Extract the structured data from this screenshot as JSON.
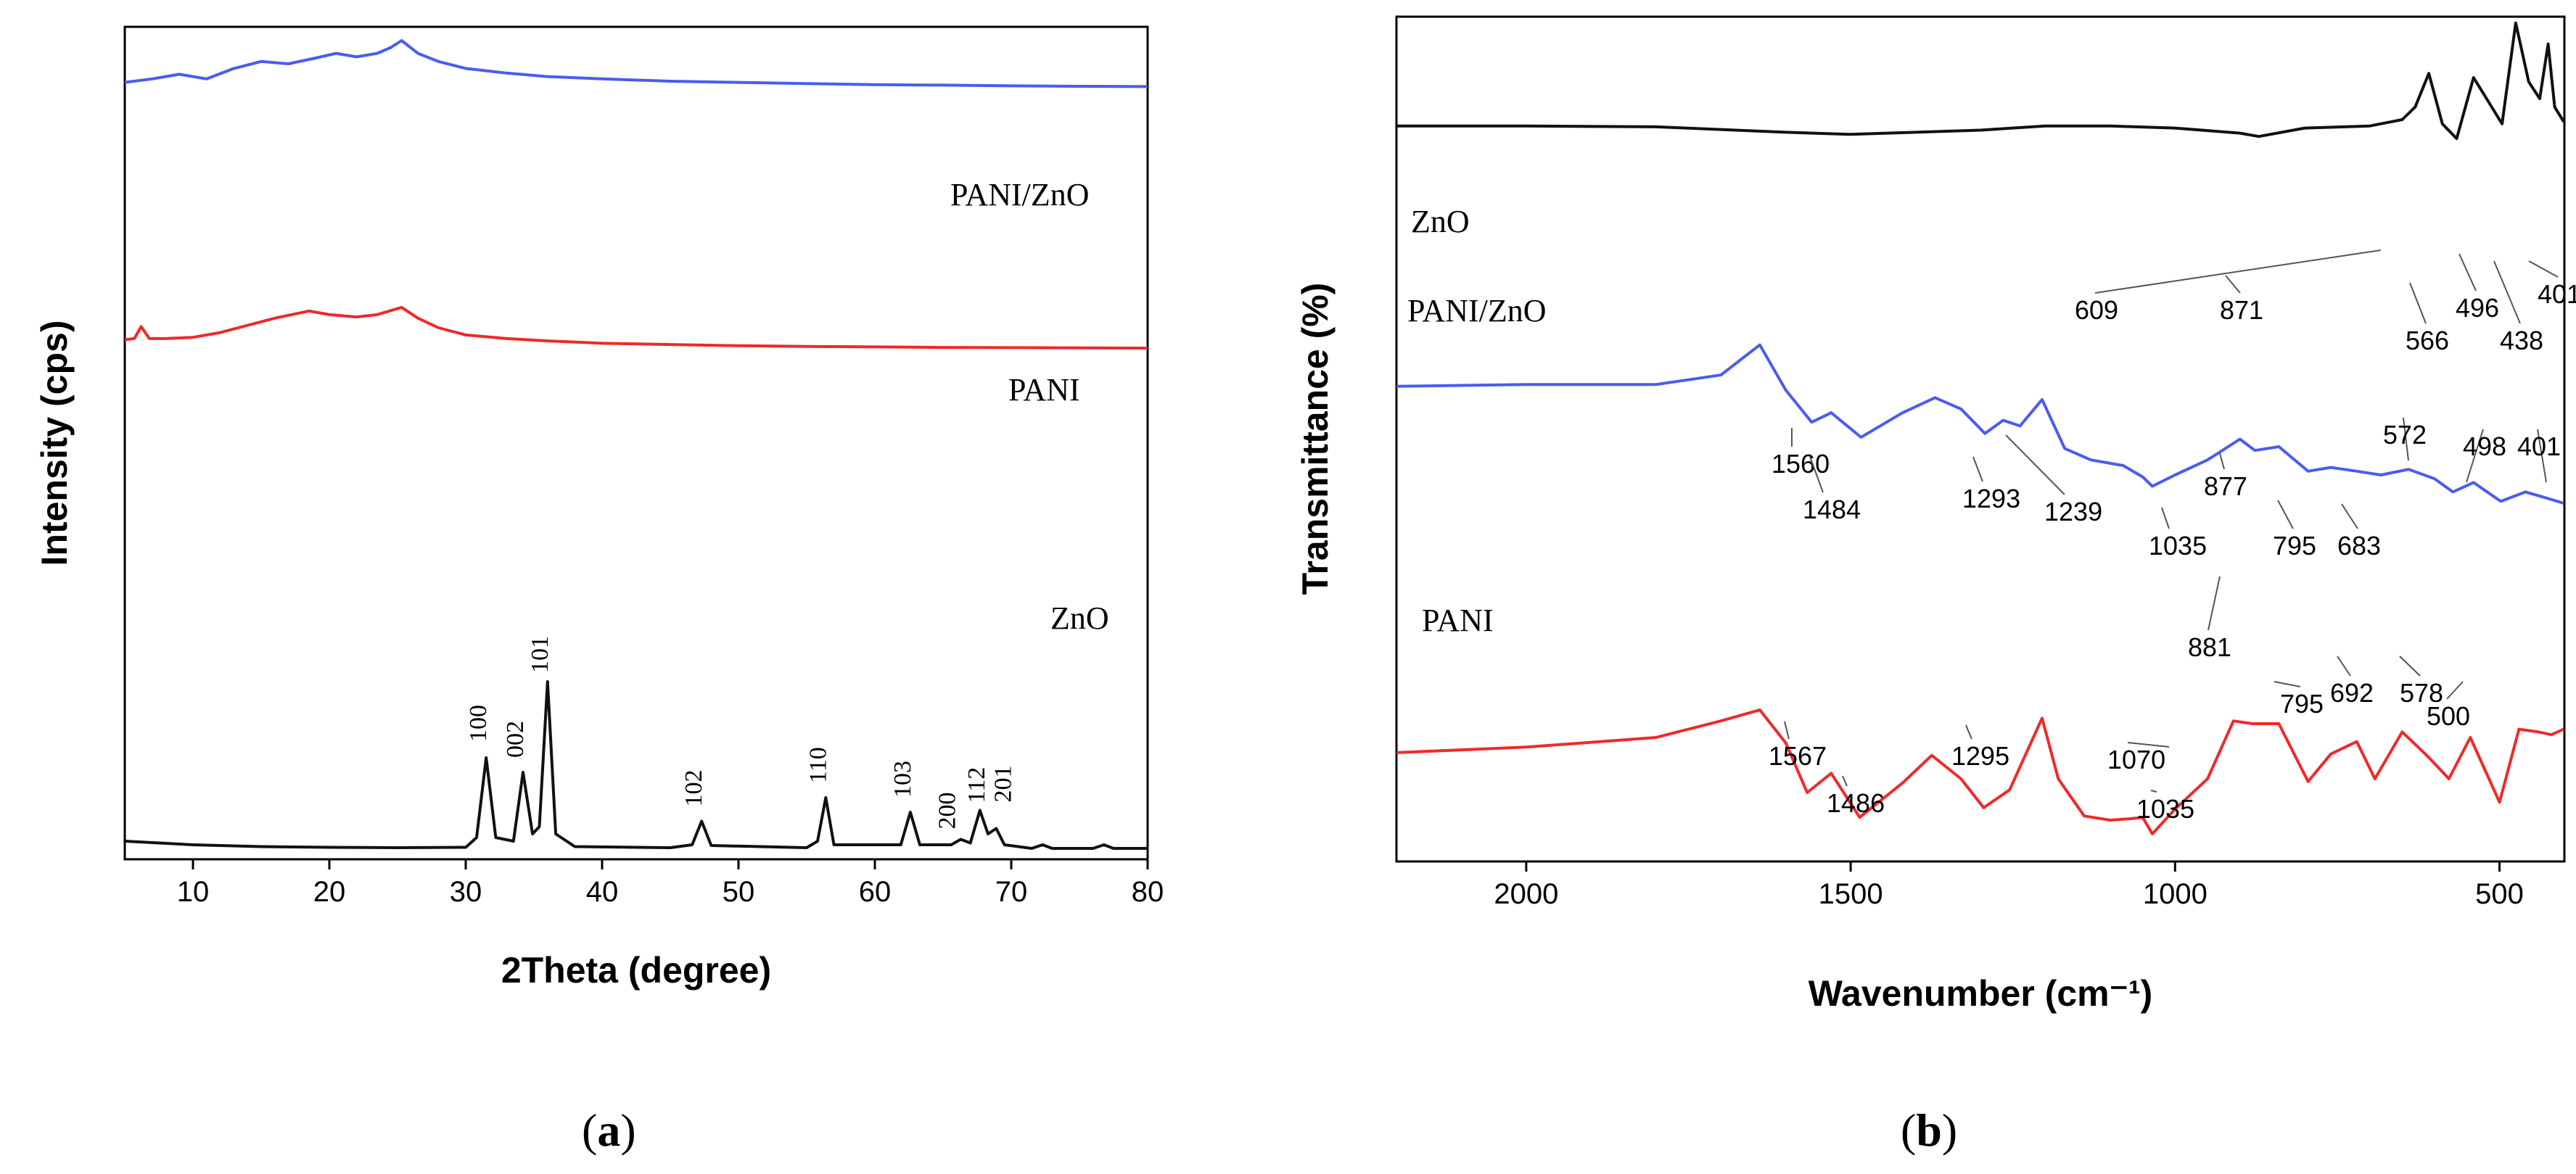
{
  "chart_data": [
    {
      "type": "line",
      "panel_label": "a",
      "xlabel": "2Theta (degree)",
      "ylabel": "Intensity (cps)",
      "xlim": [
        5,
        80
      ],
      "xticks": [
        10,
        20,
        30,
        40,
        50,
        60,
        70,
        80
      ],
      "ylim": [
        0,
        100
      ],
      "series": [
        {
          "name": "PANI/ZnO",
          "color": "#4a5cf0",
          "x": [
            5,
            7,
            9,
            11,
            13,
            15,
            17,
            19,
            20.5,
            22,
            23.5,
            24.5,
            25.3,
            26.5,
            28,
            30,
            33,
            36,
            40,
            45,
            50,
            55,
            60,
            65,
            70,
            75,
            80
          ],
          "y": [
            77,
            78.5,
            80.5,
            78.5,
            83,
            86,
            85,
            87.5,
            89.5,
            88,
            89.5,
            92,
            95,
            89.5,
            86,
            83,
            81,
            79.5,
            78.5,
            77.5,
            77,
            76.5,
            76,
            75.8,
            75.5,
            75.3,
            75.2
          ]
        },
        {
          "name": "PANI",
          "color": "#ee2a2a",
          "x": [
            5,
            5.7,
            6.2,
            6.8,
            8,
            10,
            12,
            14,
            16,
            18.5,
            20,
            22,
            23.5,
            25.3,
            26.5,
            28,
            30,
            33,
            36,
            40,
            45,
            50,
            55,
            60,
            65,
            70,
            75,
            80
          ],
          "y": [
            55,
            55.5,
            60.5,
            55.5,
            55.5,
            56,
            58,
            61,
            64,
            67,
            65.5,
            64.5,
            65.5,
            68.5,
            64,
            60,
            57,
            55.5,
            54.5,
            53.5,
            53,
            52.5,
            52.2,
            52,
            51.8,
            51.7,
            51.6,
            51.5
          ]
        },
        {
          "name": "ZnO",
          "color": "#111111",
          "x": [
            5,
            10,
            15,
            20,
            25,
            30,
            30.8,
            31.5,
            32.2,
            33.5,
            34.2,
            34.9,
            35.4,
            36.0,
            36.6,
            38,
            45,
            46.6,
            47.3,
            48.0,
            55,
            55.8,
            56.4,
            57.0,
            61.9,
            62.6,
            63.3,
            65.6,
            66.3,
            67.0,
            67.7,
            68.3,
            68.9,
            69.5,
            71.5,
            72.3,
            73,
            76,
            76.8,
            77.5,
            80
          ],
          "y": [
            4,
            3,
            2.5,
            2.3,
            2.2,
            2.3,
            5,
            27,
            5,
            4,
            23,
            6,
            8,
            48,
            6,
            2.5,
            2.2,
            3,
            9.5,
            2.8,
            2.2,
            4,
            16,
            3,
            3,
            12,
            3,
            3,
            4.5,
            3.5,
            12.5,
            6,
            7.5,
            3,
            2,
            3,
            2,
            2,
            3,
            2,
            2
          ]
        }
      ],
      "peak_labels": [
        {
          "text": "100",
          "x": 31.5
        },
        {
          "text": "002",
          "x": 34.2
        },
        {
          "text": "101",
          "x": 36.0
        },
        {
          "text": "102",
          "x": 47.3
        },
        {
          "text": "110",
          "x": 56.4
        },
        {
          "text": "103",
          "x": 62.6
        },
        {
          "text": "200",
          "x": 66.3
        },
        {
          "text": "112",
          "x": 67.7
        },
        {
          "text": "201",
          "x": 68.9
        }
      ]
    },
    {
      "type": "line",
      "panel_label": "b",
      "xlabel": "Wavenumber (cm⁻¹)",
      "ylabel": "Transmittance (%)",
      "xlim": [
        2200,
        400
      ],
      "x_reversed": true,
      "xticks": [
        2000,
        1500,
        1000,
        500
      ],
      "ylim": [
        0,
        100
      ],
      "series": [
        {
          "name": "ZnO",
          "color": "#111111",
          "x": [
            2200,
            2000,
            1800,
            1600,
            1500,
            1300,
            1200,
            1100,
            1000,
            900,
            871,
            800,
            700,
            650,
            630,
            609,
            588,
            566,
            540,
            520,
            496,
            475,
            455,
            438,
            425,
            415,
            401
          ],
          "y": [
            73.5,
            73.5,
            73.3,
            72,
            71.5,
            72.5,
            73.5,
            73.5,
            73,
            71.8,
            71,
            73,
            73.5,
            75,
            78,
            86,
            74,
            70.5,
            85,
            80,
            74,
            98,
            84,
            80,
            93,
            78,
            74.5
          ]
        },
        {
          "name": "PANI/ZnO",
          "color": "#4a5cf0",
          "x": [
            2200,
            2000,
            1800,
            1700,
            1640,
            1600,
            1560,
            1530,
            1484,
            1420,
            1370,
            1330,
            1293,
            1265,
            1239,
            1205,
            1170,
            1130,
            1080,
            1050,
            1035,
            1000,
            950,
            900,
            877,
            840,
            795,
            760,
            720,
            683,
            640,
            600,
            572,
            540,
            498,
            460,
            430,
            401
          ],
          "y": [
            61,
            61.5,
            61.5,
            64,
            72,
            60,
            51.5,
            54,
            47.5,
            54,
            58,
            55,
            48.5,
            52,
            50.5,
            57.5,
            44.5,
            41.5,
            40,
            37,
            34.5,
            37.5,
            41.5,
            47,
            44,
            45,
            38.5,
            39.5,
            38.5,
            37.5,
            39,
            36.5,
            33,
            35.5,
            30.5,
            33,
            31.5,
            30
          ]
        },
        {
          "name": "PANI",
          "color": "#ee2a2a",
          "x": [
            2200,
            2000,
            1800,
            1700,
            1640,
            1600,
            1567,
            1530,
            1486,
            1420,
            1375,
            1330,
            1295,
            1255,
            1205,
            1180,
            1140,
            1100,
            1070,
            1050,
            1035,
            1000,
            950,
            910,
            881,
            840,
            795,
            760,
            720,
            692,
            650,
            610,
            578,
            545,
            500,
            470,
            440,
            420,
            401
          ],
          "y": [
            29.5,
            31.5,
            35,
            41,
            45,
            33,
            15,
            22,
            6,
            18.5,
            28.5,
            20,
            9.5,
            16,
            42,
            20,
            6.5,
            5,
            5.5,
            6,
            0,
            9,
            20,
            41,
            40,
            40,
            19,
            29,
            33.5,
            20,
            37,
            28,
            20,
            35,
            11.5,
            38,
            37,
            36,
            38
          ]
        }
      ],
      "peak_labels": [
        {
          "text": "871",
          "series": "ZnO"
        },
        {
          "text": "609",
          "series": "ZnO"
        },
        {
          "text": "566",
          "series": "ZnO"
        },
        {
          "text": "496",
          "series": "ZnO"
        },
        {
          "text": "438",
          "series": "ZnO"
        },
        {
          "text": "401",
          "series": "ZnO"
        },
        {
          "text": "1560",
          "series": "PANI/ZnO"
        },
        {
          "text": "1484",
          "series": "PANI/ZnO"
        },
        {
          "text": "1293",
          "series": "PANI/ZnO"
        },
        {
          "text": "1239",
          "series": "PANI/ZnO"
        },
        {
          "text": "1035",
          "series": "PANI/ZnO"
        },
        {
          "text": "877",
          "series": "PANI/ZnO"
        },
        {
          "text": "795",
          "series": "PANI/ZnO"
        },
        {
          "text": "683",
          "series": "PANI/ZnO"
        },
        {
          "text": "572",
          "series": "PANI/ZnO"
        },
        {
          "text": "498",
          "series": "PANI/ZnO"
        },
        {
          "text": "401",
          "series": "PANI/ZnO"
        },
        {
          "text": "1567",
          "series": "PANI"
        },
        {
          "text": "1486",
          "series": "PANI"
        },
        {
          "text": "1295",
          "series": "PANI"
        },
        {
          "text": "1070",
          "series": "PANI"
        },
        {
          "text": "1035",
          "series": "PANI"
        },
        {
          "text": "881",
          "series": "PANI"
        },
        {
          "text": "795",
          "series": "PANI"
        },
        {
          "text": "692",
          "series": "PANI"
        },
        {
          "text": "578",
          "series": "PANI"
        },
        {
          "text": "500",
          "series": "PANI"
        }
      ]
    }
  ]
}
